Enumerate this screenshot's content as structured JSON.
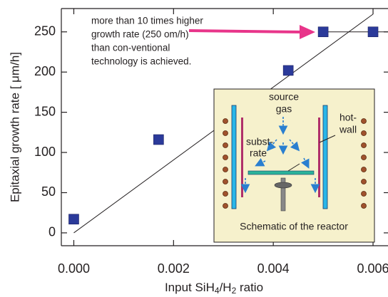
{
  "chart_data": {
    "type": "scatter",
    "xlabel": [
      "Input SiH",
      "4",
      "/H",
      "2",
      " ratio"
    ],
    "ylabel": "Epitaxial growth rate [ μm/h]",
    "x": [
      0.0,
      0.0017,
      0.0043,
      0.005,
      0.006
    ],
    "values": [
      17,
      116,
      202,
      250,
      250
    ],
    "color": "#2b3a9a",
    "lines": [
      {
        "x": [
          0,
          0.006
        ],
        "y": [
          0,
          272
        ]
      },
      {
        "x": [
          0.005,
          0.0063
        ],
        "y": [
          250,
          250
        ]
      }
    ],
    "xlim": [
      -0.00025,
      0.0063
    ],
    "ylim": [
      -16,
      279
    ],
    "xticks": [
      {
        "value": 0,
        "label": "0.000"
      },
      {
        "value": 0.002,
        "label": "0.002"
      },
      {
        "value": 0.004,
        "label": "0.004"
      },
      {
        "value": 0.006,
        "label": "0.006"
      }
    ],
    "yticks": [
      0,
      50,
      100,
      150,
      200,
      250
    ],
    "annotation": [
      "more than 10 times higher",
      "growth rate (250 om/h)",
      "than con-ventional",
      "technology is achieved."
    ],
    "inset": {
      "source": [
        "source",
        "gas"
      ],
      "wall": [
        "hot-",
        "wall"
      ],
      "substrate": [
        "subst-",
        "rate"
      ],
      "caption": "Schematic of the reactor"
    }
  }
}
